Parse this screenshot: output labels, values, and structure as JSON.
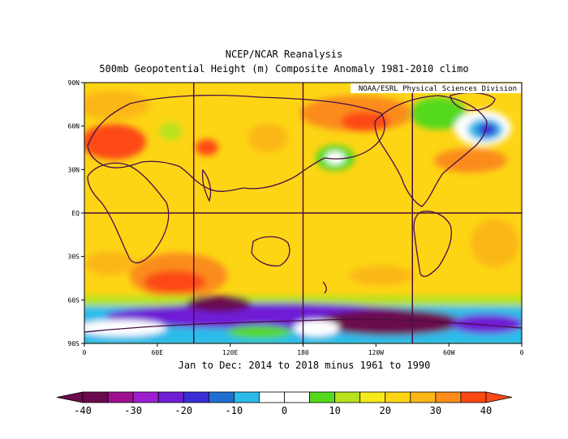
{
  "title": "NCEP/NCAR Reanalysis",
  "subtitle": "500mb Geopotential Height (m) Composite Anomaly 1981-2010 climo",
  "credit": "NOAA/ESRL Physical Sciences Division",
  "period": "Jan to Dec: 2014 to 2018 minus 1961 to 1990",
  "lat_labels": [
    "90N",
    "60N",
    "30N",
    "EQ",
    "30S",
    "60S",
    "90S"
  ],
  "lon_labels": [
    "0",
    "60E",
    "120E",
    "180",
    "120W",
    "60W",
    "0"
  ],
  "colorbar": {
    "labels": [
      "-40",
      "-30",
      "-20",
      "-10",
      "0",
      "10",
      "20",
      "30",
      "40"
    ],
    "colors": [
      "#6a0a4e",
      "#a0108e",
      "#9d1fd0",
      "#6f1fd6",
      "#3a2ed6",
      "#1f6fd0",
      "#2bbcea",
      "#ffffff",
      "#ffffff",
      "#55d91c",
      "#b8e21e",
      "#f6ea1d",
      "#fdd515",
      "#fbb718",
      "#fb8c1c",
      "#fc4a15"
    ]
  },
  "colors": {
    "map_base": "#fdd515",
    "coastline": "#4a0e45",
    "grid": "#4a0e45"
  }
}
